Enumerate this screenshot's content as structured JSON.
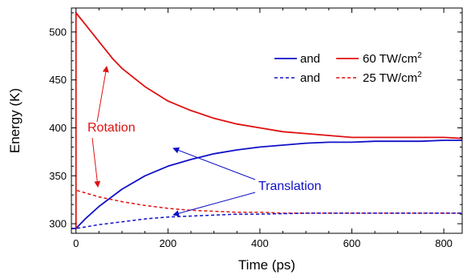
{
  "chart_data": {
    "type": "line",
    "title": "",
    "xlabel": "Time (ps)",
    "ylabel": "Energy (K)",
    "xlim": [
      -10,
      840
    ],
    "ylim": [
      290,
      525
    ],
    "x_ticks": [
      0,
      200,
      400,
      600,
      800
    ],
    "y_ticks": [
      300,
      350,
      400,
      450,
      500
    ],
    "grid": false,
    "legend": {
      "placement": "top-right",
      "rows": [
        {
          "left": "and",
          "right": "60 TW/cm",
          "sup": "2",
          "style": "solid"
        },
        {
          "left": "and",
          "right": "25 TW/cm",
          "sup": "2",
          "style": "dashed"
        }
      ]
    },
    "colors": {
      "rotation": "#e01010",
      "translation": "#1010c8"
    },
    "series": [
      {
        "group": "rotation",
        "style": "solid",
        "x": [
          -10,
          -1,
          0,
          0,
          20,
          50,
          80,
          100,
          150,
          200,
          250,
          300,
          350,
          400,
          450,
          500,
          550,
          600,
          650,
          700,
          750,
          800,
          840
        ],
        "y": [
          295,
          295,
          295,
          520,
          508,
          490,
          472,
          462,
          443,
          428,
          418,
          410,
          404,
          400,
          396,
          394,
          392,
          390,
          390,
          390,
          390,
          390,
          389
        ]
      },
      {
        "group": "translation",
        "style": "solid",
        "x": [
          -10,
          0,
          20,
          50,
          100,
          150,
          200,
          250,
          300,
          350,
          400,
          450,
          500,
          550,
          600,
          650,
          700,
          750,
          800,
          840
        ],
        "y": [
          295,
          295,
          305,
          318,
          336,
          350,
          360,
          367,
          373,
          377,
          380,
          382,
          384,
          385,
          385,
          386,
          386,
          386,
          387,
          387
        ]
      },
      {
        "group": "rotation",
        "style": "dashed",
        "x": [
          0,
          0,
          50,
          100,
          150,
          200,
          250,
          300,
          350,
          400,
          450,
          500,
          600,
          700,
          840
        ],
        "y": [
          295,
          335,
          328,
          323,
          319,
          316,
          314,
          313,
          312,
          312,
          311,
          311,
          311,
          311,
          311
        ]
      },
      {
        "group": "translation",
        "style": "dashed",
        "x": [
          -10,
          0,
          50,
          100,
          150,
          200,
          250,
          300,
          350,
          400,
          500,
          600,
          700,
          840
        ],
        "y": [
          295,
          295,
          299,
          302,
          305,
          307,
          308,
          309,
          310,
          310,
          311,
          311,
          311,
          311
        ]
      }
    ],
    "annotations": {
      "rotation_label": "Rotation",
      "translation_label": "Translation"
    }
  }
}
